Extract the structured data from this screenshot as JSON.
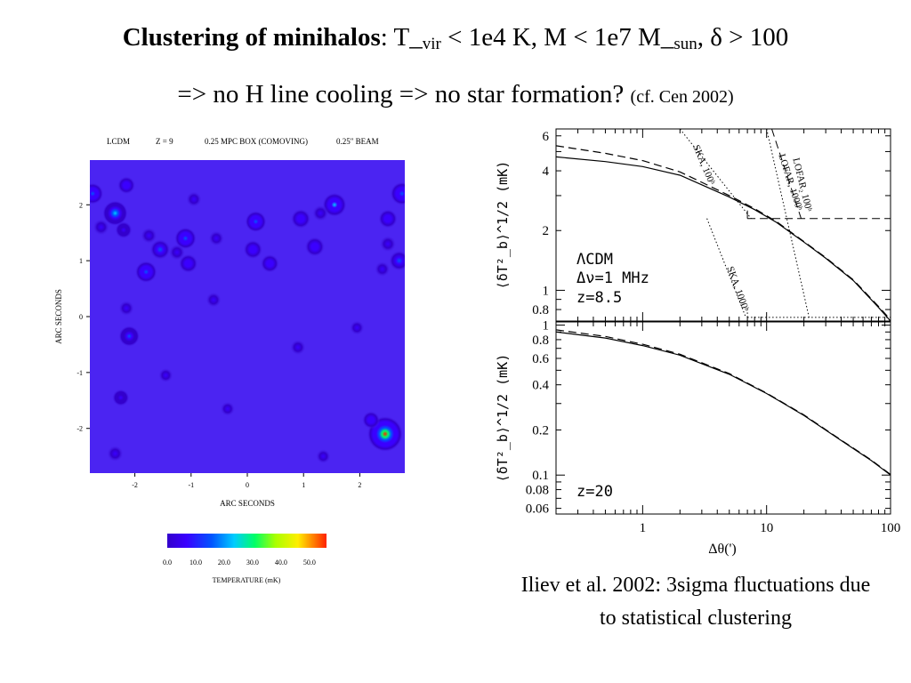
{
  "slide": {
    "title_bold": "Clustering of minihalos",
    "title_colon": ":",
    "title_t": "T_",
    "title_t_sub": "vir",
    "title_rest1": " < 1e4 K,  M < 1e7 M_",
    "title_m_sub": "sun",
    "title_rest2": ",  δ > 100",
    "line2_main": "=> no H line cooling => no star formation?",
    "line2_ref": "(cf. Cen 2002)",
    "caption_line1": "Iliev et al. 2002: 3sigma fluctuations due",
    "caption_line2": "to statistical clustering"
  },
  "chart_data": [
    {
      "type": "heatmap",
      "header": [
        "LCDM",
        "Z = 9",
        "0.25 MPC BOX (COMOVING)",
        "0.25\" BEAM"
      ],
      "xlabel": "ARC SECONDS",
      "ylabel": "ARC SECONDS",
      "xlim": [
        -2.8,
        2.8
      ],
      "ylim": [
        -2.8,
        2.8
      ],
      "xticks": [
        -2,
        -1,
        0,
        1,
        2
      ],
      "yticks": [
        -2,
        -1,
        0,
        1,
        2
      ],
      "xtick_labels": [
        "-2",
        "-1",
        "0",
        "1",
        "2"
      ],
      "ytick_labels": [
        "-2",
        "-1",
        "0",
        "1",
        "2"
      ],
      "colorbar": {
        "label": "TEMPERATURE (mK)",
        "range": [
          0,
          56
        ],
        "ticks": [
          0,
          10,
          20,
          30,
          40,
          50
        ],
        "tick_labels": [
          "0.0",
          "10.0",
          "20.0",
          "30.0",
          "40.0",
          "50.0"
        ],
        "colors": [
          "#3300cc",
          "#3a00ff",
          "#0055ff",
          "#00ccff",
          "#00ff66",
          "#aaff00",
          "#ffee00",
          "#ff2200"
        ]
      },
      "background_color": "#4b24f2",
      "sources": [
        {
          "x": -2.75,
          "y": 2.2,
          "t": 14
        },
        {
          "x": -2.35,
          "y": 1.85,
          "t": 22
        },
        {
          "x": -2.6,
          "y": 1.6,
          "t": 6
        },
        {
          "x": -2.15,
          "y": 2.35,
          "t": 8
        },
        {
          "x": -2.2,
          "y": 1.55,
          "t": 7
        },
        {
          "x": -1.75,
          "y": 1.45,
          "t": 6
        },
        {
          "x": -1.55,
          "y": 1.2,
          "t": 12
        },
        {
          "x": -1.1,
          "y": 1.4,
          "t": 15
        },
        {
          "x": -1.25,
          "y": 1.15,
          "t": 6
        },
        {
          "x": -1.05,
          "y": 0.95,
          "t": 10
        },
        {
          "x": -1.8,
          "y": 0.8,
          "t": 15
        },
        {
          "x": -0.95,
          "y": 2.1,
          "t": 5
        },
        {
          "x": -0.55,
          "y": 1.4,
          "t": 5
        },
        {
          "x": 0.15,
          "y": 1.7,
          "t": 14
        },
        {
          "x": 0.1,
          "y": 1.2,
          "t": 10
        },
        {
          "x": 0.4,
          "y": 0.95,
          "t": 9
        },
        {
          "x": 0.95,
          "y": 1.75,
          "t": 11
        },
        {
          "x": 1.2,
          "y": 1.25,
          "t": 11
        },
        {
          "x": 1.55,
          "y": 2.0,
          "t": 20
        },
        {
          "x": 1.3,
          "y": 1.85,
          "t": 6
        },
        {
          "x": 2.5,
          "y": 1.75,
          "t": 10
        },
        {
          "x": 2.75,
          "y": 2.2,
          "t": 18
        },
        {
          "x": 2.7,
          "y": 1.0,
          "t": 12
        },
        {
          "x": 2.5,
          "y": 1.3,
          "t": 6
        },
        {
          "x": 2.4,
          "y": 0.85,
          "t": 5
        },
        {
          "x": -2.1,
          "y": -0.35,
          "t": 13
        },
        {
          "x": -2.15,
          "y": 0.15,
          "t": 5
        },
        {
          "x": -2.25,
          "y": -1.45,
          "t": 7
        },
        {
          "x": -0.6,
          "y": 0.3,
          "t": 5
        },
        {
          "x": -1.45,
          "y": -1.05,
          "t": 4
        },
        {
          "x": 0.9,
          "y": -0.55,
          "t": 5
        },
        {
          "x": 1.95,
          "y": -0.2,
          "t": 4
        },
        {
          "x": -0.35,
          "y": -1.65,
          "t": 4
        },
        {
          "x": 2.45,
          "y": -2.1,
          "t": 55
        },
        {
          "x": 2.2,
          "y": -1.85,
          "t": 8
        },
        {
          "x": -2.35,
          "y": -2.45,
          "t": 6
        },
        {
          "x": 1.35,
          "y": -2.5,
          "t": 4
        }
      ]
    },
    {
      "type": "line",
      "panel": "top",
      "xlabel": "Δθ(')",
      "ylabel": "⟨δT²_b⟩^1/2 (mK)",
      "xscale": "log",
      "yscale": "log",
      "xlim": [
        0.2,
        100
      ],
      "ylim": [
        0.7,
        6.5
      ],
      "yticks": [
        0.8,
        1,
        2,
        4,
        6
      ],
      "ytick_labels": [
        "0.8",
        "1",
        "2",
        "4",
        "6"
      ],
      "annotations": [
        "ΛCDM",
        "Δν=1 MHz",
        "z=8.5"
      ],
      "series": [
        {
          "style": "solid",
          "x": [
            0.2,
            0.5,
            1,
            2,
            3,
            5,
            8,
            12,
            20,
            30,
            50,
            80,
            100
          ],
          "y": [
            4.7,
            4.45,
            4.2,
            3.8,
            3.4,
            2.95,
            2.55,
            2.2,
            1.75,
            1.45,
            1.12,
            0.82,
            0.7
          ]
        },
        {
          "style": "dashed",
          "x": [
            0.2,
            0.5,
            1,
            2,
            3,
            5,
            8,
            12,
            20,
            30,
            50,
            80,
            100
          ],
          "y": [
            5.35,
            4.9,
            4.5,
            3.95,
            3.5,
            3.0,
            2.58,
            2.22,
            1.76,
            1.46,
            1.13,
            0.83,
            0.71
          ]
        }
      ],
      "sensitivity_curves": [
        {
          "label": "SKA, 100ʰ",
          "style": "dotted",
          "x": [
            2.0,
            7.5
          ],
          "y": [
            6.5,
            2.3
          ]
        },
        {
          "label": "SKA, 1000ʰ",
          "style": "dotted",
          "x": [
            3.3,
            6.8
          ],
          "y": [
            2.3,
            0.73
          ]
        },
        {
          "label": "LOFAR, 1000ʰ",
          "style": "dotted",
          "x": [
            10,
            22
          ],
          "y": [
            6.5,
            0.73
          ]
        },
        {
          "label": "LOFAR₂ 100ʰ",
          "style": "dashed",
          "x": [
            11,
            19
          ],
          "y": [
            6.5,
            2.3
          ]
        }
      ],
      "sensitivity_floors": [
        {
          "style": "dashed",
          "from_x": 7.0,
          "to_x": 100,
          "y": 2.3
        },
        {
          "style": "dotted",
          "from_x": 7.0,
          "to_x": 100,
          "y": 0.73
        }
      ],
      "sensitivity_verticals": [
        {
          "style": "dashed",
          "x": 7.0,
          "from_y": 2.3,
          "to_y": 2.55
        },
        {
          "style": "dotted",
          "x": 7.0,
          "from_y": 0.73,
          "to_y": 0.8
        }
      ]
    },
    {
      "type": "line",
      "panel": "bottom",
      "xlabel": "Δθ(')",
      "ylabel": "⟨δT²_b⟩^1/2 (mK)",
      "xscale": "log",
      "yscale": "log",
      "xlim": [
        0.2,
        100
      ],
      "ylim": [
        0.055,
        1.05
      ],
      "yticks": [
        0.06,
        0.08,
        0.1,
        0.2,
        0.4,
        0.6,
        0.8,
        1
      ],
      "ytick_labels": [
        "0.06",
        "0.08",
        "0.1",
        "0.2",
        "0.4",
        "0.6",
        "0.8",
        "1"
      ],
      "xticks": [
        1,
        10,
        100
      ],
      "xtick_labels": [
        "1",
        "10",
        "100"
      ],
      "annotations": [
        "z=20"
      ],
      "series": [
        {
          "style": "solid",
          "x": [
            0.2,
            0.5,
            1,
            2,
            5,
            10,
            20,
            40,
            70,
            100
          ],
          "y": [
            0.9,
            0.82,
            0.73,
            0.63,
            0.47,
            0.35,
            0.25,
            0.17,
            0.125,
            0.1
          ]
        },
        {
          "style": "dashed",
          "x": [
            0.2,
            0.5,
            1,
            2,
            5,
            10,
            20,
            40,
            70,
            100
          ],
          "y": [
            0.93,
            0.84,
            0.745,
            0.64,
            0.475,
            0.352,
            0.252,
            0.171,
            0.126,
            0.101
          ]
        }
      ]
    }
  ]
}
